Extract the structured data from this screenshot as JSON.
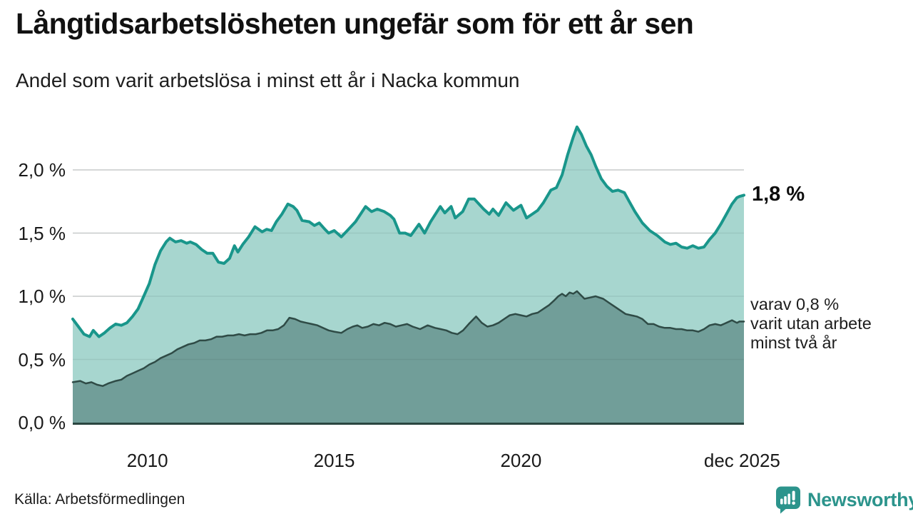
{
  "header": {
    "title": "Långtidsarbetslösheten ungefär som för ett år sen",
    "subtitle": "Andel som varit arbetslösa i minst ett år i Nacka kommun"
  },
  "footer": {
    "source": "Källa: Arbetsförmedlingen",
    "brand": "Newsworthy"
  },
  "colors": {
    "grid": "#dbdbdb",
    "grid_overlay": "rgba(40,70,65,0.10)",
    "axis": "#2a4540",
    "text": "#1a1a1a",
    "brand": "#2c948c"
  },
  "chart_data": {
    "type": "area",
    "title": "Långtidsarbetslösheten ungefär som för ett år sen",
    "subtitle": "Andel som varit arbetslösa i minst ett år i Nacka kommun",
    "unit": "%",
    "grid": true,
    "x_range": [
      2008.0,
      2025.97
    ],
    "y_range": [
      0,
      2.5
    ],
    "y_ticks": [
      {
        "label": "2,0 %",
        "value": 2.0
      },
      {
        "label": "1,5 %",
        "value": 1.5
      },
      {
        "label": "1,0 %",
        "value": 1.0
      },
      {
        "label": "0,5 %",
        "value": 0.5
      },
      {
        "label": "0,0 %",
        "value": 0.0
      }
    ],
    "x_ticks": [
      {
        "label": "2010",
        "year": 2010
      },
      {
        "label": "2015",
        "year": 2015
      },
      {
        "label": "2020",
        "year": 2020
      },
      {
        "label": "dec 2025",
        "year": 2025.92
      }
    ],
    "annotations": {
      "latest": "1,8 %",
      "secondary_lines": [
        "varav 0,8 %",
        "varit utan arbete",
        "minst två år"
      ]
    },
    "series": [
      {
        "name": "Arbetslösa minst ett år",
        "line_color": "#19968b",
        "fill_color": "#a7d6cf",
        "line_width": 4,
        "points": [
          [
            2008.0,
            0.82
          ],
          [
            2008.15,
            0.76
          ],
          [
            2008.3,
            0.7
          ],
          [
            2008.45,
            0.68
          ],
          [
            2008.55,
            0.73
          ],
          [
            2008.7,
            0.68
          ],
          [
            2008.85,
            0.71
          ],
          [
            2009.0,
            0.75
          ],
          [
            2009.15,
            0.78
          ],
          [
            2009.3,
            0.77
          ],
          [
            2009.45,
            0.79
          ],
          [
            2009.6,
            0.84
          ],
          [
            2009.75,
            0.9
          ],
          [
            2009.9,
            1.0
          ],
          [
            2010.05,
            1.1
          ],
          [
            2010.2,
            1.25
          ],
          [
            2010.35,
            1.36
          ],
          [
            2010.5,
            1.43
          ],
          [
            2010.6,
            1.46
          ],
          [
            2010.75,
            1.43
          ],
          [
            2010.9,
            1.44
          ],
          [
            2011.05,
            1.42
          ],
          [
            2011.15,
            1.43
          ],
          [
            2011.3,
            1.41
          ],
          [
            2011.45,
            1.37
          ],
          [
            2011.6,
            1.34
          ],
          [
            2011.75,
            1.34
          ],
          [
            2011.9,
            1.27
          ],
          [
            2012.05,
            1.26
          ],
          [
            2012.2,
            1.3
          ],
          [
            2012.33,
            1.4
          ],
          [
            2012.42,
            1.35
          ],
          [
            2012.55,
            1.41
          ],
          [
            2012.71,
            1.47
          ],
          [
            2012.88,
            1.55
          ],
          [
            2013.07,
            1.51
          ],
          [
            2013.19,
            1.53
          ],
          [
            2013.32,
            1.52
          ],
          [
            2013.45,
            1.59
          ],
          [
            2013.6,
            1.65
          ],
          [
            2013.76,
            1.73
          ],
          [
            2013.9,
            1.71
          ],
          [
            2014.0,
            1.68
          ],
          [
            2014.14,
            1.6
          ],
          [
            2014.33,
            1.59
          ],
          [
            2014.47,
            1.56
          ],
          [
            2014.6,
            1.58
          ],
          [
            2014.75,
            1.53
          ],
          [
            2014.85,
            1.5
          ],
          [
            2015.0,
            1.52
          ],
          [
            2015.19,
            1.47
          ],
          [
            2015.35,
            1.52
          ],
          [
            2015.57,
            1.59
          ],
          [
            2015.84,
            1.71
          ],
          [
            2016.0,
            1.67
          ],
          [
            2016.15,
            1.69
          ],
          [
            2016.34,
            1.67
          ],
          [
            2016.5,
            1.64
          ],
          [
            2016.6,
            1.61
          ],
          [
            2016.75,
            1.5
          ],
          [
            2016.9,
            1.5
          ],
          [
            2017.05,
            1.48
          ],
          [
            2017.27,
            1.57
          ],
          [
            2017.42,
            1.5
          ],
          [
            2017.58,
            1.59
          ],
          [
            2017.84,
            1.71
          ],
          [
            2017.96,
            1.66
          ],
          [
            2018.13,
            1.71
          ],
          [
            2018.24,
            1.62
          ],
          [
            2018.44,
            1.67
          ],
          [
            2018.6,
            1.77
          ],
          [
            2018.75,
            1.77
          ],
          [
            2019.0,
            1.69
          ],
          [
            2019.15,
            1.65
          ],
          [
            2019.25,
            1.69
          ],
          [
            2019.4,
            1.64
          ],
          [
            2019.6,
            1.74
          ],
          [
            2019.8,
            1.68
          ],
          [
            2020.0,
            1.72
          ],
          [
            2020.15,
            1.62
          ],
          [
            2020.3,
            1.65
          ],
          [
            2020.45,
            1.68
          ],
          [
            2020.6,
            1.74
          ],
          [
            2020.8,
            1.84
          ],
          [
            2020.95,
            1.86
          ],
          [
            2021.1,
            1.96
          ],
          [
            2021.25,
            2.12
          ],
          [
            2021.4,
            2.26
          ],
          [
            2021.5,
            2.34
          ],
          [
            2021.62,
            2.28
          ],
          [
            2021.75,
            2.19
          ],
          [
            2021.88,
            2.12
          ],
          [
            2022.0,
            2.03
          ],
          [
            2022.15,
            1.93
          ],
          [
            2022.3,
            1.87
          ],
          [
            2022.45,
            1.83
          ],
          [
            2022.6,
            1.84
          ],
          [
            2022.77,
            1.82
          ],
          [
            2022.9,
            1.75
          ],
          [
            2023.05,
            1.67
          ],
          [
            2023.25,
            1.58
          ],
          [
            2023.45,
            1.52
          ],
          [
            2023.65,
            1.48
          ],
          [
            2023.85,
            1.43
          ],
          [
            2024.0,
            1.41
          ],
          [
            2024.15,
            1.42
          ],
          [
            2024.3,
            1.39
          ],
          [
            2024.45,
            1.38
          ],
          [
            2024.6,
            1.4
          ],
          [
            2024.75,
            1.38
          ],
          [
            2024.9,
            1.39
          ],
          [
            2025.05,
            1.45
          ],
          [
            2025.2,
            1.5
          ],
          [
            2025.35,
            1.57
          ],
          [
            2025.5,
            1.65
          ],
          [
            2025.65,
            1.73
          ],
          [
            2025.78,
            1.78
          ],
          [
            2025.85,
            1.79
          ],
          [
            2025.97,
            1.8
          ]
        ]
      },
      {
        "name": "Varav utan arbete minst två år",
        "line_color": "#2f4b46",
        "fill_color": "#719e99",
        "line_width": 2.5,
        "points": [
          [
            2008.0,
            0.32
          ],
          [
            2008.2,
            0.33
          ],
          [
            2008.35,
            0.31
          ],
          [
            2008.5,
            0.32
          ],
          [
            2008.65,
            0.3
          ],
          [
            2008.8,
            0.29
          ],
          [
            2008.95,
            0.31
          ],
          [
            2009.15,
            0.33
          ],
          [
            2009.3,
            0.34
          ],
          [
            2009.45,
            0.37
          ],
          [
            2009.6,
            0.39
          ],
          [
            2009.75,
            0.41
          ],
          [
            2009.9,
            0.43
          ],
          [
            2010.05,
            0.46
          ],
          [
            2010.2,
            0.48
          ],
          [
            2010.35,
            0.51
          ],
          [
            2010.5,
            0.53
          ],
          [
            2010.65,
            0.55
          ],
          [
            2010.8,
            0.58
          ],
          [
            2010.95,
            0.6
          ],
          [
            2011.1,
            0.62
          ],
          [
            2011.25,
            0.63
          ],
          [
            2011.4,
            0.65
          ],
          [
            2011.55,
            0.65
          ],
          [
            2011.7,
            0.66
          ],
          [
            2011.85,
            0.68
          ],
          [
            2012.0,
            0.68
          ],
          [
            2012.15,
            0.69
          ],
          [
            2012.3,
            0.69
          ],
          [
            2012.45,
            0.7
          ],
          [
            2012.6,
            0.69
          ],
          [
            2012.75,
            0.7
          ],
          [
            2012.9,
            0.7
          ],
          [
            2013.05,
            0.71
          ],
          [
            2013.2,
            0.73
          ],
          [
            2013.35,
            0.73
          ],
          [
            2013.5,
            0.74
          ],
          [
            2013.65,
            0.77
          ],
          [
            2013.8,
            0.83
          ],
          [
            2013.95,
            0.82
          ],
          [
            2014.1,
            0.8
          ],
          [
            2014.25,
            0.79
          ],
          [
            2014.4,
            0.78
          ],
          [
            2014.55,
            0.77
          ],
          [
            2014.7,
            0.75
          ],
          [
            2014.85,
            0.73
          ],
          [
            2015.0,
            0.72
          ],
          [
            2015.19,
            0.71
          ],
          [
            2015.35,
            0.74
          ],
          [
            2015.5,
            0.76
          ],
          [
            2015.62,
            0.77
          ],
          [
            2015.75,
            0.75
          ],
          [
            2015.9,
            0.76
          ],
          [
            2016.05,
            0.78
          ],
          [
            2016.2,
            0.77
          ],
          [
            2016.35,
            0.79
          ],
          [
            2016.5,
            0.78
          ],
          [
            2016.65,
            0.76
          ],
          [
            2016.8,
            0.77
          ],
          [
            2016.95,
            0.78
          ],
          [
            2017.1,
            0.76
          ],
          [
            2017.3,
            0.74
          ],
          [
            2017.5,
            0.77
          ],
          [
            2017.7,
            0.75
          ],
          [
            2017.85,
            0.74
          ],
          [
            2018.0,
            0.73
          ],
          [
            2018.15,
            0.71
          ],
          [
            2018.3,
            0.7
          ],
          [
            2018.45,
            0.73
          ],
          [
            2018.6,
            0.78
          ],
          [
            2018.8,
            0.84
          ],
          [
            2018.95,
            0.79
          ],
          [
            2019.1,
            0.76
          ],
          [
            2019.25,
            0.77
          ],
          [
            2019.4,
            0.79
          ],
          [
            2019.55,
            0.82
          ],
          [
            2019.7,
            0.85
          ],
          [
            2019.85,
            0.86
          ],
          [
            2020.0,
            0.85
          ],
          [
            2020.15,
            0.84
          ],
          [
            2020.3,
            0.86
          ],
          [
            2020.45,
            0.87
          ],
          [
            2020.6,
            0.9
          ],
          [
            2020.75,
            0.93
          ],
          [
            2020.9,
            0.97
          ],
          [
            2021.0,
            1.0
          ],
          [
            2021.1,
            1.02
          ],
          [
            2021.2,
            1.0
          ],
          [
            2021.3,
            1.03
          ],
          [
            2021.4,
            1.02
          ],
          [
            2021.5,
            1.04
          ],
          [
            2021.6,
            1.01
          ],
          [
            2021.7,
            0.98
          ],
          [
            2021.85,
            0.99
          ],
          [
            2022.0,
            1.0
          ],
          [
            2022.1,
            0.99
          ],
          [
            2022.2,
            0.98
          ],
          [
            2022.35,
            0.95
          ],
          [
            2022.5,
            0.92
          ],
          [
            2022.6,
            0.9
          ],
          [
            2022.8,
            0.86
          ],
          [
            2022.95,
            0.85
          ],
          [
            2023.1,
            0.84
          ],
          [
            2023.25,
            0.82
          ],
          [
            2023.4,
            0.78
          ],
          [
            2023.55,
            0.78
          ],
          [
            2023.7,
            0.76
          ],
          [
            2023.85,
            0.75
          ],
          [
            2024.0,
            0.75
          ],
          [
            2024.15,
            0.74
          ],
          [
            2024.3,
            0.74
          ],
          [
            2024.45,
            0.73
          ],
          [
            2024.6,
            0.73
          ],
          [
            2024.75,
            0.72
          ],
          [
            2024.9,
            0.74
          ],
          [
            2025.05,
            0.77
          ],
          [
            2025.2,
            0.78
          ],
          [
            2025.35,
            0.77
          ],
          [
            2025.5,
            0.79
          ],
          [
            2025.65,
            0.81
          ],
          [
            2025.78,
            0.79
          ],
          [
            2025.85,
            0.8
          ],
          [
            2025.97,
            0.8
          ]
        ]
      }
    ]
  }
}
